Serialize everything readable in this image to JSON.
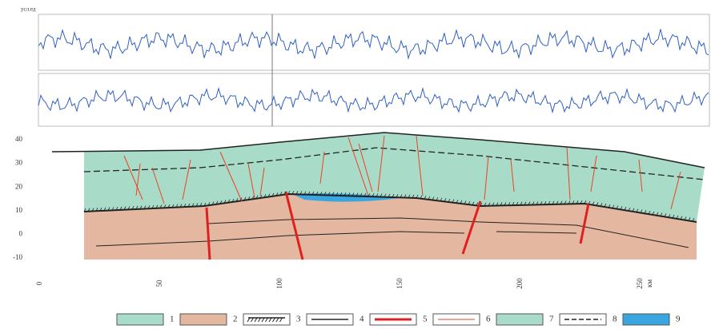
{
  "signal_panel": {
    "unit_label": "усл.ед"
  },
  "section": {
    "y_ticks": [
      "40",
      "30",
      "20",
      "10",
      "0",
      "-10"
    ],
    "x_ticks": [
      "0",
      "50",
      "100",
      "150",
      "200",
      "250"
    ],
    "x_unit": "км"
  },
  "legend": {
    "items": [
      "1",
      "2",
      "3",
      "4",
      "5",
      "6",
      "7",
      "8",
      "9"
    ]
  }
}
